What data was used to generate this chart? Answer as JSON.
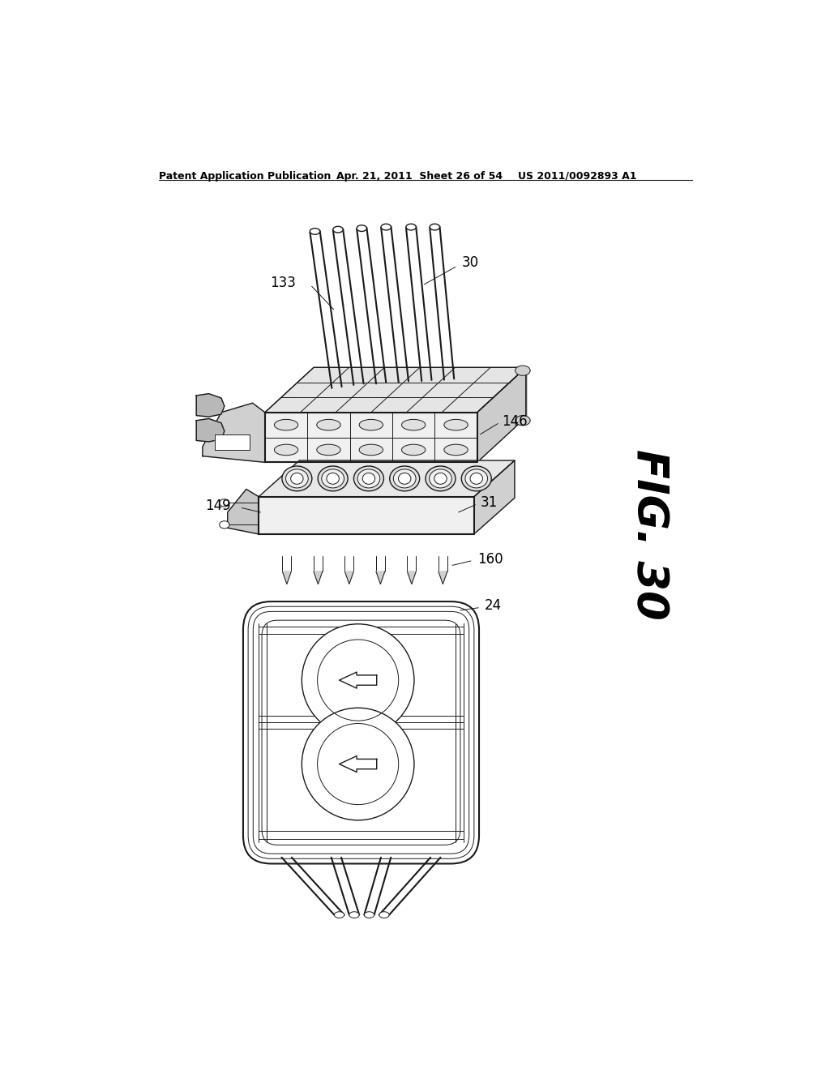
{
  "bg_color": "#ffffff",
  "header_left": "Patent Application Publication",
  "header_mid": "Apr. 21, 2011  Sheet 26 of 54",
  "header_right": "US 2011/0092893 A1",
  "fig_label": "FIG. 30",
  "line_color": "#1a1a1a",
  "gray_light": "#e8e8e8",
  "gray_mid": "#d0d0d0",
  "gray_dark": "#b0b0b0",
  "white": "#ffffff"
}
